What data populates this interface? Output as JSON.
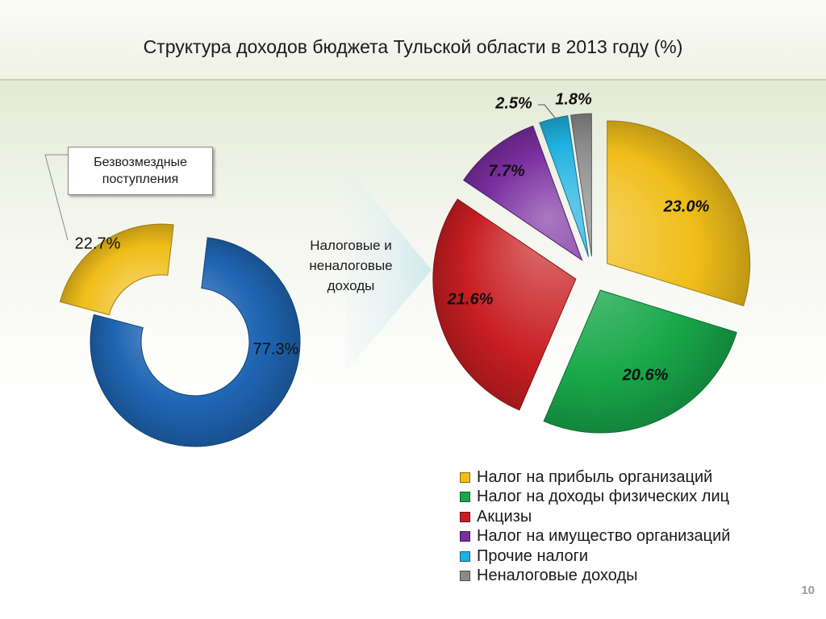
{
  "slide": {
    "title": "Структура доходов бюджета Тульской области в 2013 году (%)",
    "callout_label": "Безвозмездные\nпоступления",
    "center_label": "Налоговые и\nненалоговые\nдоходы",
    "page_number": "10"
  },
  "chart_data": [
    {
      "type": "pie",
      "variant": "donut",
      "categories": [
        "Безвозмездные поступления",
        "Налоговые и неналоговые доходы"
      ],
      "values": [
        22.7,
        77.3
      ],
      "labels": [
        "22.7%",
        "77.3%"
      ],
      "colors": [
        "#f0be1a",
        "#1f65b3"
      ]
    },
    {
      "type": "pie",
      "variant": "exploded",
      "categories": [
        "Налог на прибыль организаций",
        "Налог на доходы физических лиц",
        "Акцизы",
        "Налог на имущество организаций",
        "Прочие налоги",
        "Неналоговые доходы"
      ],
      "values": [
        23.0,
        20.6,
        21.6,
        7.7,
        2.5,
        1.8
      ],
      "labels": [
        "23.0%",
        "20.6%",
        "21.6%",
        "7.7%",
        "2.5%",
        "1.8%"
      ],
      "colors": [
        "#f0be1a",
        "#18a84a",
        "#c81e22",
        "#7a2ea0",
        "#1fb1e0",
        "#8a8a8a"
      ],
      "legend": "bottom-right"
    }
  ]
}
